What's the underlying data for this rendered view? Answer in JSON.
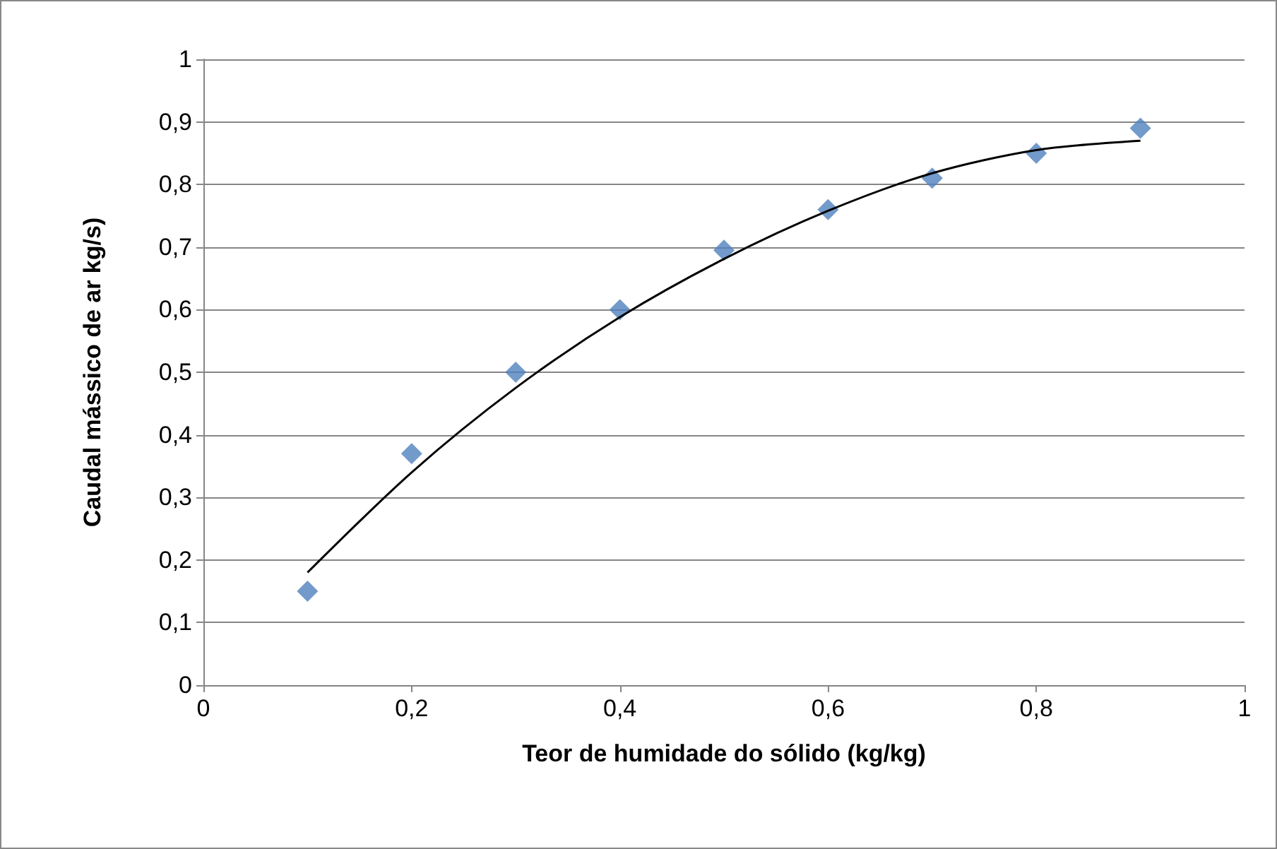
{
  "chart_data": {
    "type": "scatter",
    "xlabel": "Teor de humidade do sólido (kg/kg)",
    "ylabel": "Caudal mássico de ar kg/s)",
    "x": [
      0.1,
      0.2,
      0.3,
      0.4,
      0.5,
      0.6,
      0.7,
      0.8,
      0.9
    ],
    "series": [
      {
        "color": "#4f81bd",
        "values": [
          0.15,
          0.37,
          0.5,
          0.6,
          0.695,
          0.76,
          0.81,
          0.85,
          0.89
        ],
        "marker": "diamond"
      },
      {
        "type": "line",
        "color": "#000000",
        "marker": "none",
        "line_style": "solid",
        "x": [
          0.1,
          0.2,
          0.3,
          0.4,
          0.5,
          0.6,
          0.7,
          0.8,
          0.9
        ],
        "values": [
          0.18,
          0.34,
          0.475,
          0.588,
          0.681,
          0.758,
          0.818,
          0.855,
          0.87
        ]
      }
    ],
    "xlim": [
      0,
      1
    ],
    "xticks": [
      0,
      {
        "value": 0.2,
        "label": "0,2"
      },
      {
        "value": 0.4,
        "label": "0,4"
      },
      {
        "value": 0.6,
        "label": "0,6"
      },
      {
        "value": 0.8,
        "label": "0,8"
      },
      1
    ],
    "ylim": [
      0,
      1
    ],
    "yticks": [
      0,
      {
        "value": 0.1,
        "label": "0,1"
      },
      {
        "value": 0.2,
        "label": "0,2"
      },
      {
        "value": 0.3,
        "label": "0,3"
      },
      {
        "value": 0.4,
        "label": "0,4"
      },
      {
        "value": 0.5,
        "label": "0,5"
      },
      {
        "value": 0.6,
        "label": "0,6"
      },
      {
        "value": 0.7,
        "label": "0,7"
      },
      {
        "value": 0.8,
        "label": "0,8"
      },
      {
        "value": 0.9,
        "label": "0,9"
      },
      1
    ],
    "grid": "y"
  }
}
